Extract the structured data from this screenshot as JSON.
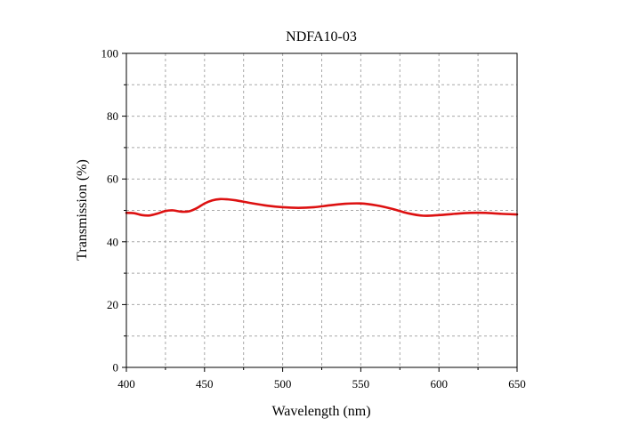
{
  "chart_data": {
    "type": "line",
    "title": "NDFA10-03",
    "xlabel": "Wavelength (nm)",
    "ylabel": "Transmission (%)",
    "xlim": [
      400,
      650
    ],
    "ylim": [
      0,
      100
    ],
    "x_ticks": [
      400,
      450,
      500,
      550,
      600,
      650
    ],
    "y_ticks": [
      0,
      20,
      40,
      60,
      80,
      100
    ],
    "grid": true,
    "series_color": "#dd1111",
    "series": [
      {
        "x": [
          400,
          405,
          410,
          415,
          420,
          425,
          430,
          435,
          440,
          445,
          450,
          455,
          460,
          465,
          470,
          480,
          490,
          500,
          510,
          520,
          530,
          540,
          550,
          560,
          570,
          580,
          590,
          600,
          610,
          620,
          630,
          640,
          650
        ],
        "y": [
          49.2,
          49.1,
          48.5,
          48.4,
          49.0,
          49.8,
          50.0,
          49.6,
          49.7,
          50.7,
          52.2,
          53.2,
          53.6,
          53.5,
          53.2,
          52.3,
          51.5,
          51.0,
          50.8,
          51.0,
          51.6,
          52.1,
          52.2,
          51.6,
          50.5,
          49.1,
          48.3,
          48.5,
          48.9,
          49.2,
          49.2,
          48.9,
          48.7
        ]
      }
    ]
  }
}
